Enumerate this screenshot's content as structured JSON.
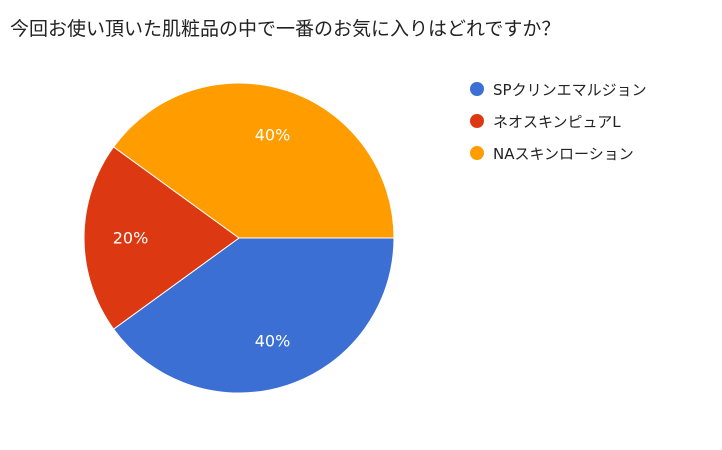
{
  "chart_data": {
    "type": "pie",
    "title": "今回お使い頂いた肌粧品の中で一番のお気に入りはどれですか？",
    "categories": [
      "SPクリンエマルジョン",
      "ネオスキンピュアL",
      "NAスキンローション"
    ],
    "values": [
      40,
      20,
      40
    ],
    "unit": "%",
    "data_labels": [
      "40%",
      "20%",
      "40%"
    ],
    "colors": [
      "#3c6fd4",
      "#dc3912",
      "#ff9d00"
    ],
    "legend_position": "right",
    "start_angle": "3 o'clock",
    "direction": "clockwise"
  }
}
